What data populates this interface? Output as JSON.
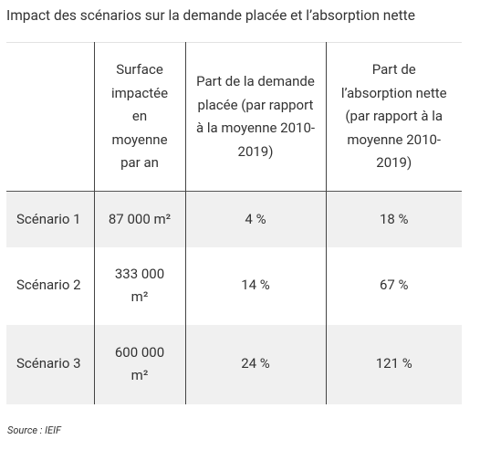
{
  "header": {
    "title": "Impact des scénarios sur la demande placée et l’absorption nette"
  },
  "table": {
    "columns": [
      "Surface impactée en moyenne par an",
      "Part de la demande placée (par rapport à la moyenne 2010-2019)",
      "Part de l’absorption nette (par rapport à la moyenne 2010-2019)"
    ],
    "rows": [
      [
        "Scénario 1",
        "87 000 m²",
        "4 %",
        "18 %"
      ],
      [
        "Scénario 2",
        "333 000 m²",
        "14 %",
        "67 %"
      ],
      [
        "Scénario 3",
        "600 000 m²",
        "24 %",
        "121 %"
      ]
    ]
  },
  "footer": {
    "source": "Source : IEIF"
  }
}
